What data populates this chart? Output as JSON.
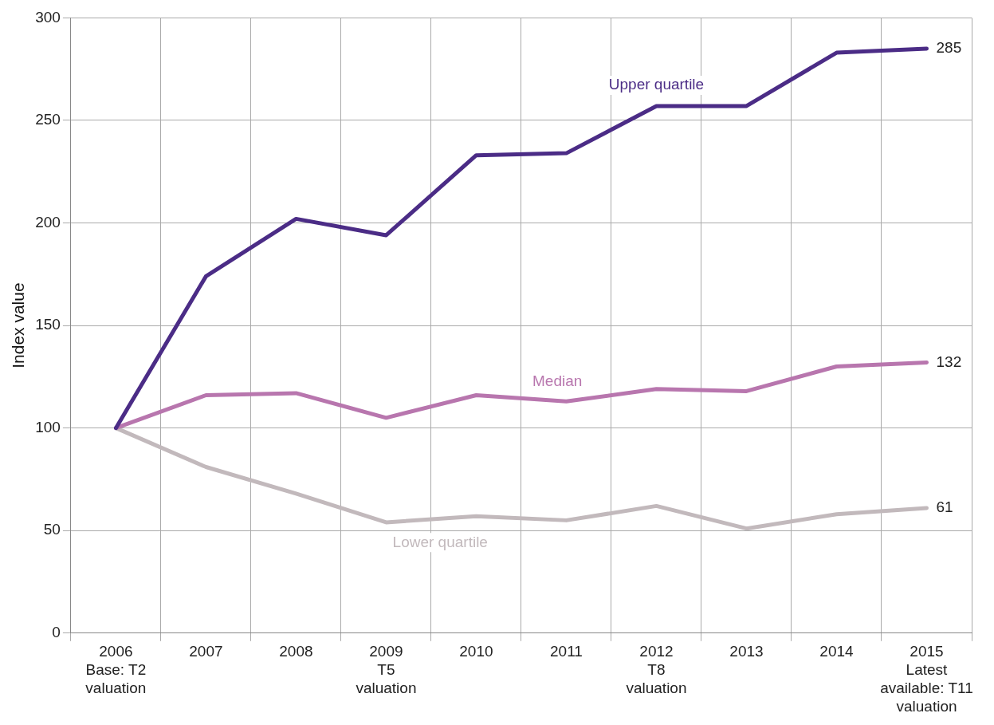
{
  "chart_data": {
    "type": "line",
    "ylabel": "Index value",
    "categories": [
      "2006\nBase: T2\nvaluation",
      "2007",
      "2008",
      "2009\nT5\nvaluation",
      "2010",
      "2011",
      "2012\nT8\nvaluation",
      "2013",
      "2014",
      "2015\nLatest\navailable: T11\nvaluation"
    ],
    "series": [
      {
        "name": "Upper quartile",
        "color": "#4b2c86",
        "values": [
          100,
          174,
          202,
          194,
          233,
          234,
          257,
          257,
          283,
          285
        ],
        "value_labels": [
          null,
          null,
          null,
          null,
          null,
          null,
          null,
          null,
          null,
          "285"
        ]
      },
      {
        "name": "Median",
        "color": "#b876ae",
        "values": [
          100,
          116,
          117,
          105,
          116,
          113,
          119,
          118,
          130,
          132
        ],
        "value_labels": [
          null,
          null,
          null,
          null,
          null,
          null,
          null,
          null,
          null,
          "132"
        ]
      },
      {
        "name": "Lower quartile",
        "color": "#c2b9bc",
        "values": [
          100,
          81,
          68,
          54,
          57,
          55,
          62,
          51,
          58,
          61
        ],
        "value_labels": [
          null,
          null,
          null,
          null,
          null,
          null,
          null,
          null,
          null,
          "61"
        ]
      }
    ],
    "ylim": [
      0,
      300
    ],
    "yticks": [
      0,
      50,
      100,
      150,
      200,
      250,
      300
    ],
    "grid": true,
    "legend": false,
    "marker": "none",
    "line_style": "solid"
  }
}
